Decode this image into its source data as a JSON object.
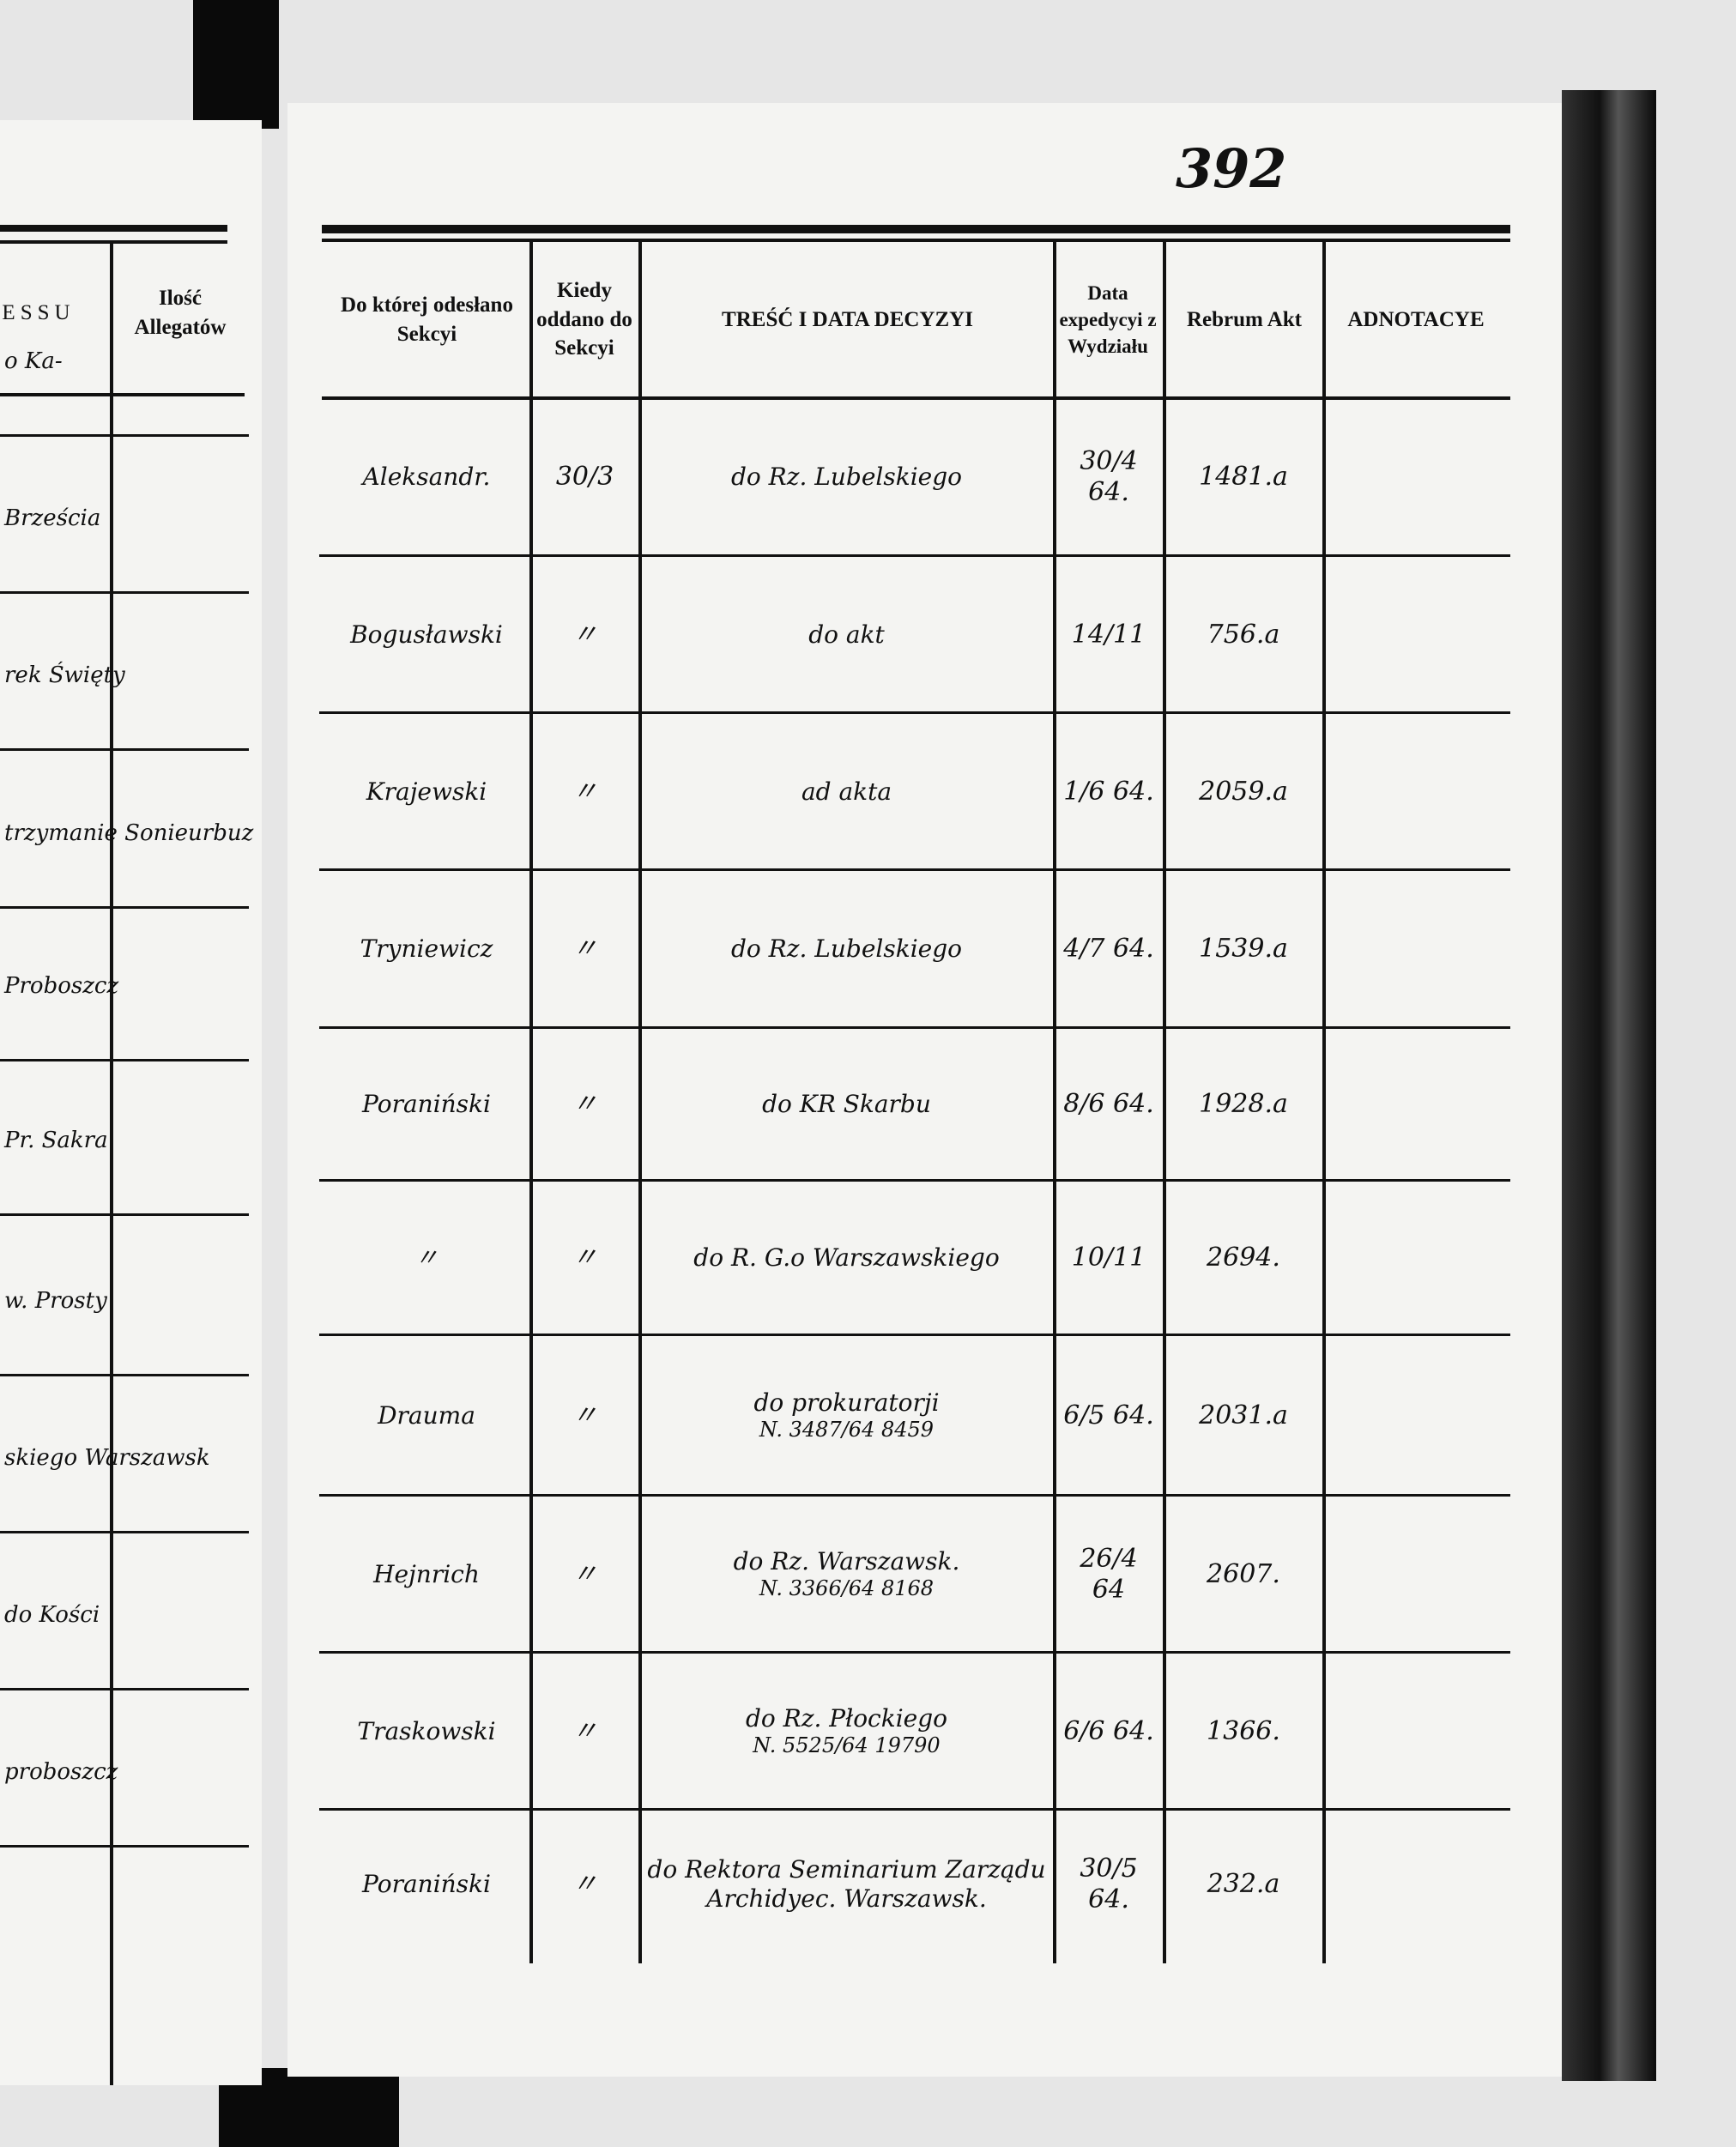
{
  "page_number": "392",
  "left_page": {
    "header": {
      "process_fragment": "ESSU",
      "allegations": "Ilość Allegatów"
    },
    "row_fragments": [
      "o Ka-",
      "Brześcia",
      "rek Święty",
      "trzymanie Sonieurbuz",
      "Proboszcz",
      "Pr. Sakra",
      "w. Prosty",
      "skiego Warszawsk",
      "do Kości",
      "proboszcz"
    ]
  },
  "table": {
    "headers": {
      "section": "Do której odesłano Sekcyi",
      "when": "Kiedy oddano do Sekcyi",
      "decision": "TREŚĆ I DATA DECYZYI",
      "expedition": "Data expedycyi z Wydziału",
      "rebrum": "Rebrum Akt",
      "notes": "ADNOTACYE"
    },
    "rows": [
      {
        "section": "Aleksandr.",
        "when": "30/3",
        "decision": "do Rz. Lubelskiego",
        "decision_ref": "",
        "expedition": "30/4 64.",
        "rebrum": "1481.a",
        "notes": ""
      },
      {
        "section": "Bogusławski",
        "when": "〃",
        "decision": "do akt",
        "decision_ref": "",
        "expedition": "14/11",
        "rebrum": "756.a",
        "notes": ""
      },
      {
        "section": "Krajewski",
        "when": "〃",
        "decision": "ad akta",
        "decision_ref": "",
        "expedition": "1/6 64.",
        "rebrum": "2059.a",
        "notes": ""
      },
      {
        "section": "Tryniewicz",
        "when": "〃",
        "decision": "do Rz. Lubelskiego",
        "decision_ref": "",
        "expedition": "4/7 64.",
        "rebrum": "1539.a",
        "notes": ""
      },
      {
        "section": "Poraniński",
        "when": "〃",
        "decision": "do KR Skarbu",
        "decision_ref": "",
        "expedition": "8/6 64.",
        "rebrum": "1928.a",
        "notes": ""
      },
      {
        "section": "〃",
        "when": "〃",
        "decision": "do R. G.o Warszawskiego",
        "decision_ref": "",
        "expedition": "10/11",
        "rebrum": "2694.",
        "notes": ""
      },
      {
        "section": "Drauma",
        "when": "〃",
        "decision": "do prokuratorji",
        "decision_ref": "N. 3487/64 8459",
        "expedition": "6/5 64.",
        "rebrum": "2031.a",
        "notes": ""
      },
      {
        "section": "Hejnrich",
        "when": "〃",
        "decision": "do Rz. Warszawsk.",
        "decision_ref": "N. 3366/64 8168",
        "expedition": "26/4 64",
        "rebrum": "2607.",
        "notes": ""
      },
      {
        "section": "Traskowski",
        "when": "〃",
        "decision": "do Rz. Płockiego",
        "decision_ref": "N. 5525/64 19790",
        "expedition": "6/6 64.",
        "rebrum": "1366.",
        "notes": ""
      },
      {
        "section": "Poraniński",
        "when": "〃",
        "decision": "do Rektora Seminarium Zarządu Archidyec. Warszawsk.",
        "decision_ref": "",
        "expedition": "30/5 64.",
        "rebrum": "232.a",
        "notes": ""
      }
    ]
  },
  "colors": {
    "paper": "#f4f4f2",
    "ink": "#111111",
    "background": "#e6e6e6",
    "binding": "#0a0a0a"
  }
}
